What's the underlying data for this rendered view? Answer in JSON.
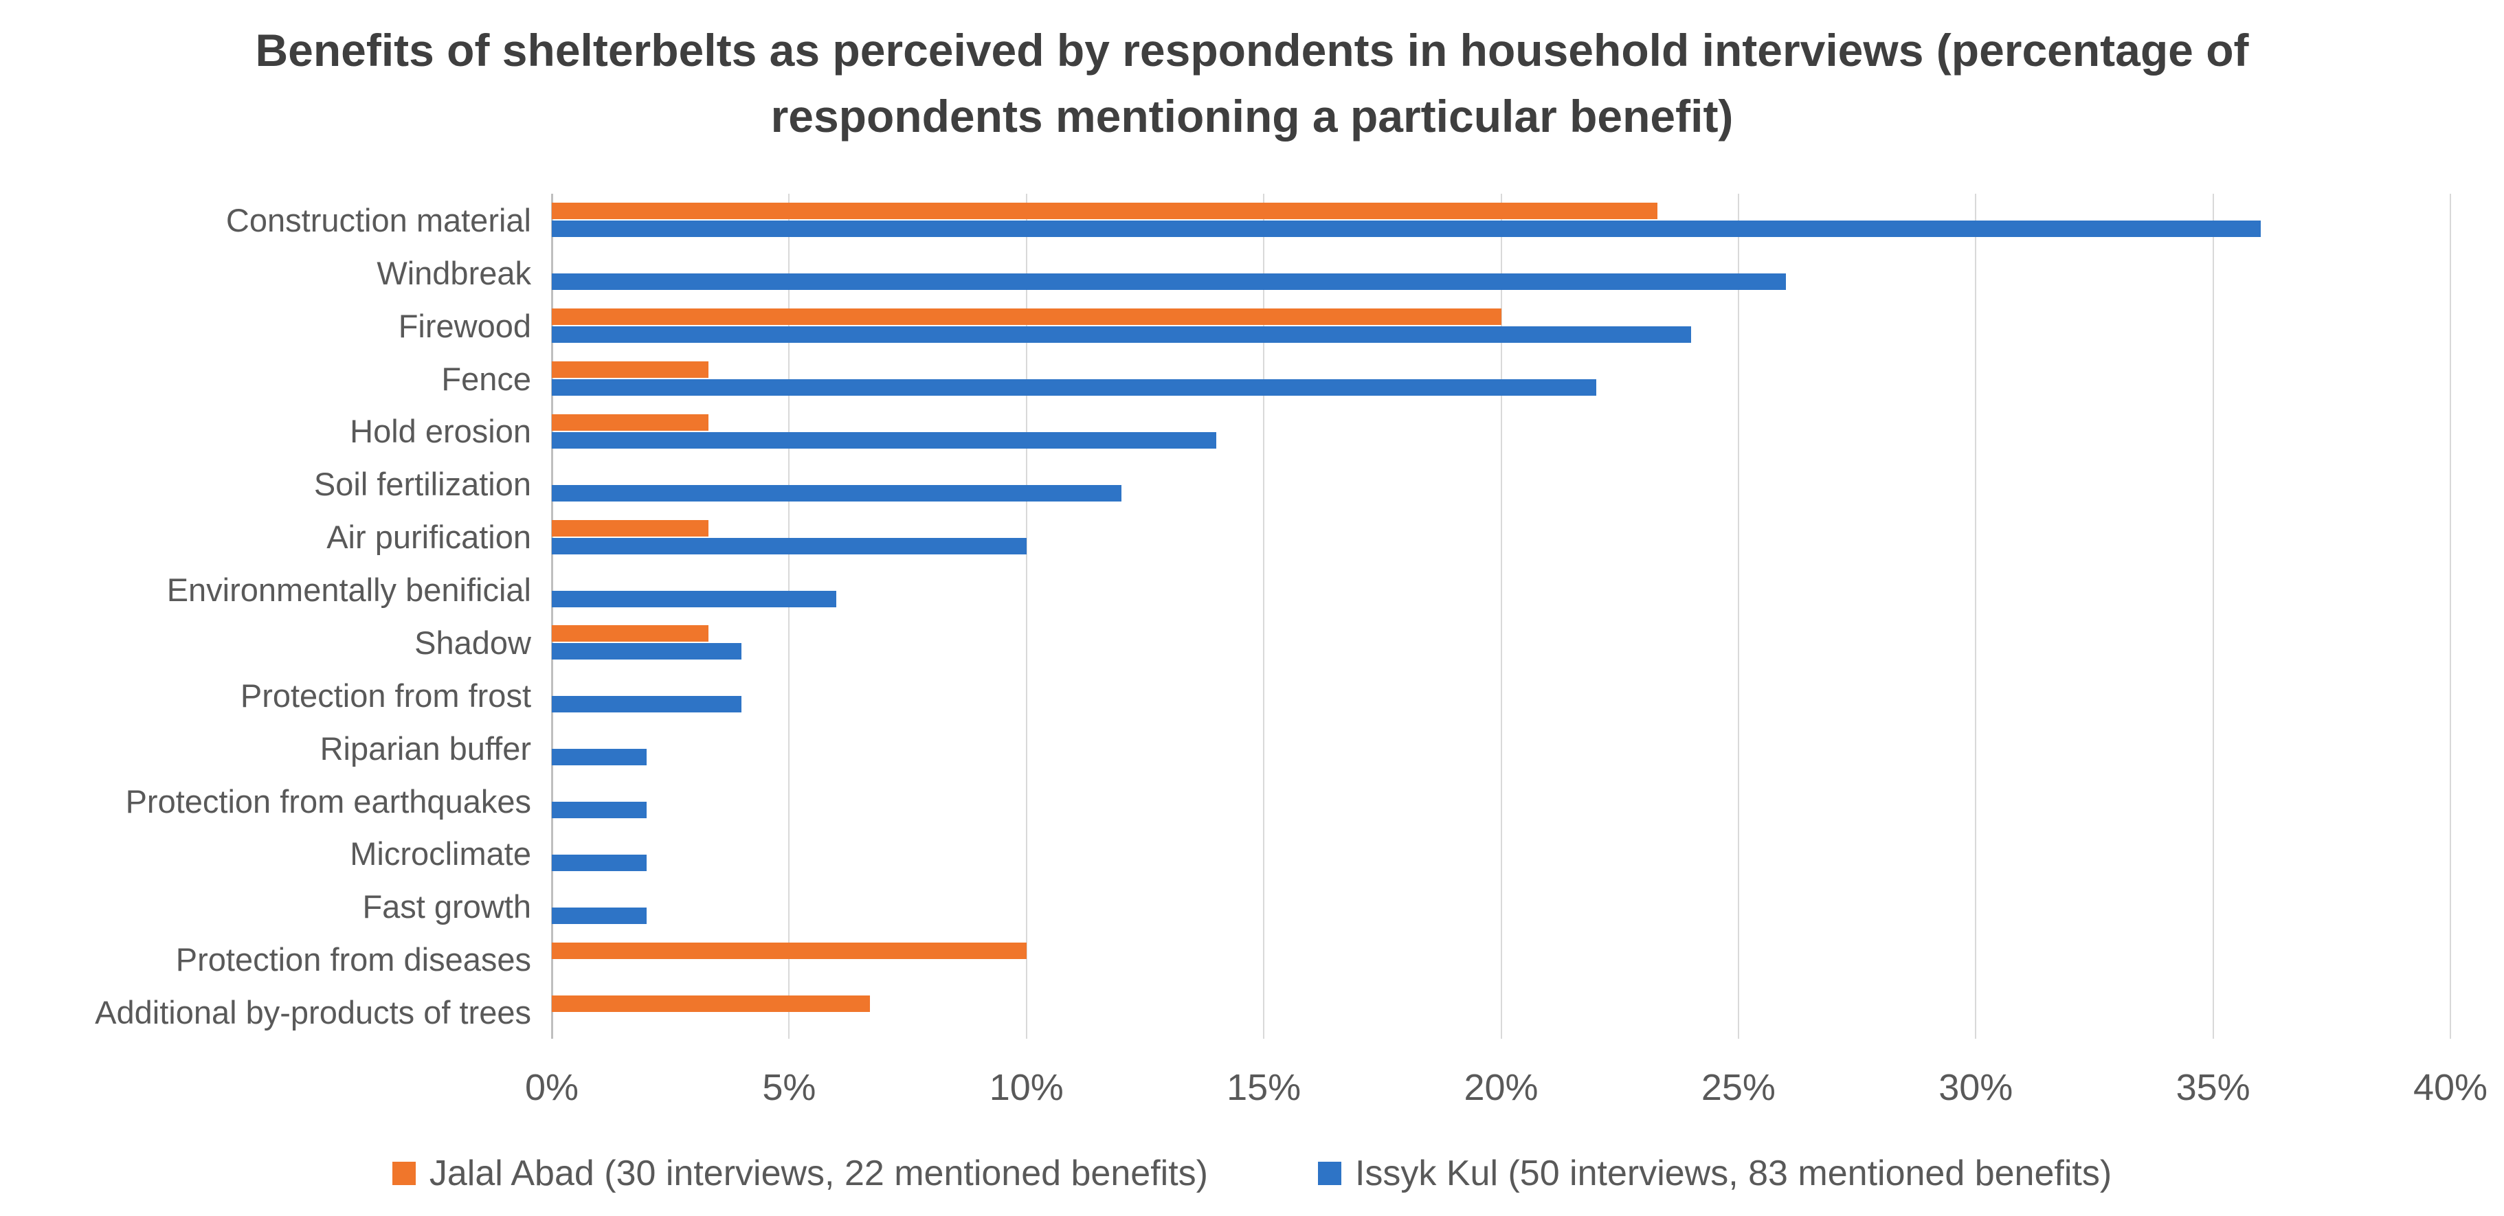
{
  "title": "Benefits of shelterbelts as perceived by respondents in household interviews (percentage of respondents mentioning a particular benefit)",
  "colors": {
    "jalal_abad_orange": "#f0762b",
    "issyk_kul_blue": "#2e74c6",
    "gridline": "#d9d9d9",
    "axis_line": "#bfbfbf",
    "title_text": "#3f3f3f",
    "label_text": "#595959"
  },
  "chart_data": {
    "type": "bar",
    "orientation": "horizontal",
    "title": "Benefits of shelterbelts as perceived by respondents in household interviews (percentage of respondents mentioning a particular benefit)",
    "xlabel": "",
    "ylabel": "",
    "xlim": [
      0,
      40
    ],
    "x_tick_step": 5,
    "x_ticks": [
      "0%",
      "5%",
      "10%",
      "15%",
      "20%",
      "25%",
      "30%",
      "35%",
      "40%"
    ],
    "grid": true,
    "legend_position": "bottom",
    "categories": [
      "Construction material",
      "Windbreak",
      "Firewood",
      "Fence",
      "Hold erosion",
      "Soil fertilization",
      "Air purification",
      "Environmentally benificial",
      "Shadow",
      "Protection from frost",
      "Riparian buffer",
      "Protection from earthquakes",
      "Microclimate",
      "Fast growth",
      "Protection from diseases",
      "Additional by-products of trees"
    ],
    "series": [
      {
        "name": "Jalal Abad (30 interviews, 22 mentioned benefits)",
        "color": "#f0762b",
        "values": [
          23.3,
          0,
          20,
          3.3,
          3.3,
          0,
          3.3,
          0,
          3.3,
          0,
          0,
          0,
          0,
          0,
          10,
          6.7
        ]
      },
      {
        "name": "Issyk Kul (50 interviews, 83 mentioned benefits)",
        "color": "#2e74c6",
        "values": [
          36,
          26,
          24,
          22,
          14,
          12,
          10,
          6,
          4,
          4,
          2,
          2,
          2,
          2,
          0,
          0
        ]
      }
    ]
  }
}
